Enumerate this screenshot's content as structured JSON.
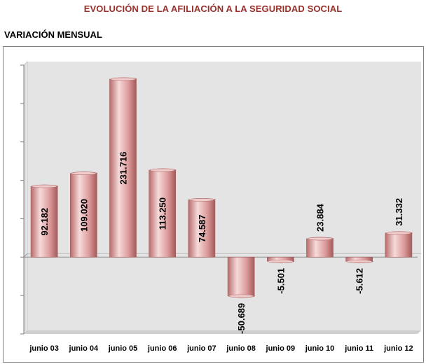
{
  "header": {
    "title": "EVOLUCIÓN DE LA AFILIACIÓN A LA SEGURIDAD SOCIAL",
    "subtitle": "VARIACIÓN MENSUAL"
  },
  "colors": {
    "bar": "#e0a3a3",
    "bar_dark": "#b86c6c",
    "bar_light": "#f6dada",
    "title": "#9b2f2a"
  },
  "chart_data": {
    "type": "bar",
    "title": "EVOLUCIÓN DE LA AFILIACIÓN A LA SEGURIDAD SOCIAL",
    "subtitle": "VARIACIÓN MENSUAL",
    "categories": [
      "junio 03",
      "junio 04",
      "junio 05",
      "junio 06",
      "junio 07",
      "junio 08",
      "junio 09",
      "junio 10",
      "junio 11",
      "junio 12"
    ],
    "values": [
      92182,
      109020,
      231716,
      113250,
      74587,
      -50689,
      -5501,
      23884,
      -5612,
      31332
    ],
    "data_labels": [
      "92.182",
      "109.020",
      "231.716",
      "113.250",
      "74.587",
      "-50.689",
      "-5.501",
      "23.884",
      "-5.612",
      "31.332"
    ],
    "ylim": [
      -100000,
      250000
    ],
    "grid": false,
    "legend": "none"
  }
}
